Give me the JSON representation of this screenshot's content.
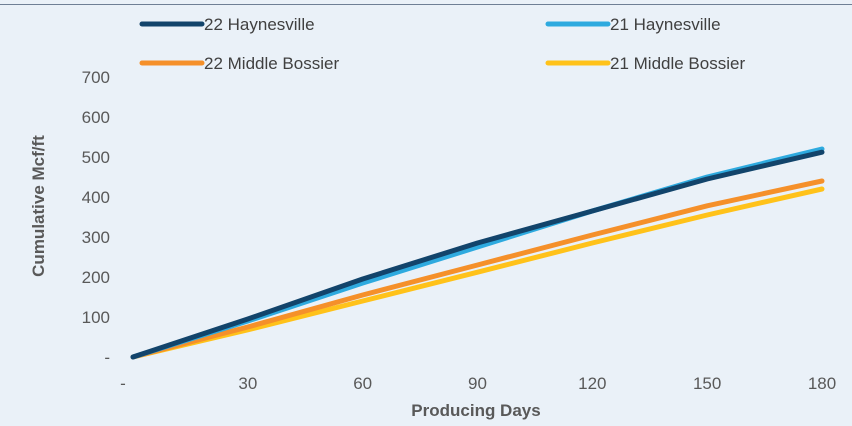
{
  "chart_data": {
    "type": "line",
    "xlabel": "Producing Days",
    "ylabel": "Cumulative Mcf/ft",
    "x": [
      0,
      30,
      60,
      90,
      120,
      150,
      180
    ],
    "x_tick_labels": [
      "-",
      "30",
      "60",
      "90",
      "120",
      "150",
      "180"
    ],
    "y_ticks": [
      0,
      100,
      200,
      300,
      400,
      500,
      600,
      700
    ],
    "y_tick_labels": [
      "-",
      "100",
      "200",
      "300",
      "400",
      "500",
      "600",
      "700"
    ],
    "xlim": [
      0,
      180
    ],
    "ylim": [
      0,
      700
    ],
    "grid": false,
    "legend": "top",
    "series": [
      {
        "name": "22 Haynesville",
        "color": "#12446b",
        "values": [
          0,
          95,
          195,
          285,
          365,
          445,
          512
        ]
      },
      {
        "name": "21 Haynesville",
        "color": "#2eaadf",
        "values": [
          0,
          90,
          185,
          275,
          365,
          450,
          520
        ]
      },
      {
        "name": "22 Middle Bossier",
        "color": "#f5902a",
        "values": [
          0,
          75,
          155,
          230,
          305,
          378,
          440
        ]
      },
      {
        "name": "21 Middle Bossier",
        "color": "#ffc21a",
        "values": [
          0,
          68,
          140,
          212,
          285,
          355,
          420
        ]
      }
    ]
  }
}
